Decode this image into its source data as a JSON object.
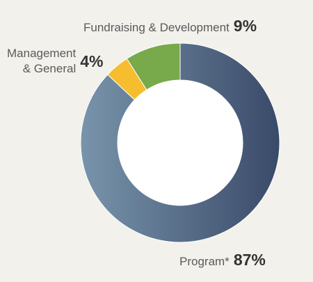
{
  "chart_data": {
    "type": "pie",
    "categories": [
      "Program*",
      "Management & General",
      "Fundraising & Development"
    ],
    "values": [
      87,
      4,
      9
    ],
    "series": [
      {
        "values": [
          87,
          4,
          9
        ]
      }
    ],
    "colors": [
      "#3d4f6e",
      "#f6bd2f",
      "#78a94a"
    ],
    "gradient": [
      "#7894ab",
      "#3a4a69"
    ],
    "labels": {
      "program": {
        "category": "Program*",
        "value": "87%"
      },
      "management": {
        "category_line1": "Management",
        "category_line2": "& General",
        "value": "4%"
      },
      "fundraising": {
        "category": "Fundraising & Development",
        "value": "9%"
      }
    },
    "legend": "none",
    "grid": false
  }
}
